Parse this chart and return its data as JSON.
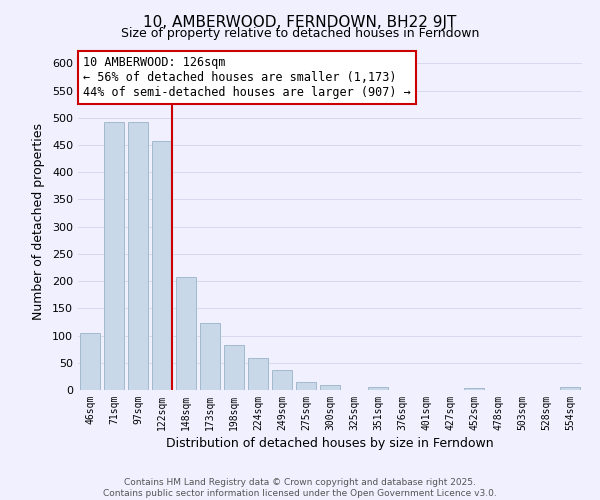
{
  "title": "10, AMBERWOOD, FERNDOWN, BH22 9JT",
  "subtitle": "Size of property relative to detached houses in Ferndown",
  "xlabel": "Distribution of detached houses by size in Ferndown",
  "ylabel": "Number of detached properties",
  "bar_labels": [
    "46sqm",
    "71sqm",
    "97sqm",
    "122sqm",
    "148sqm",
    "173sqm",
    "198sqm",
    "224sqm",
    "249sqm",
    "275sqm",
    "300sqm",
    "325sqm",
    "351sqm",
    "376sqm",
    "401sqm",
    "427sqm",
    "452sqm",
    "478sqm",
    "503sqm",
    "528sqm",
    "554sqm"
  ],
  "bar_values": [
    105,
    492,
    492,
    458,
    208,
    123,
    83,
    58,
    37,
    15,
    10,
    0,
    5,
    0,
    0,
    0,
    4,
    0,
    0,
    0,
    5
  ],
  "bar_color": "#c8d8e8",
  "bar_edge_color": "#9ab4c8",
  "vline_color": "#cc0000",
  "vline_x_index": 3,
  "annotation_title": "10 AMBERWOOD: 126sqm",
  "annotation_line1": "← 56% of detached houses are smaller (1,173)",
  "annotation_line2": "44% of semi-detached houses are larger (907) →",
  "annotation_box_color": "#ffffff",
  "annotation_border_color": "#cc0000",
  "ylim": [
    0,
    620
  ],
  "yticks": [
    0,
    50,
    100,
    150,
    200,
    250,
    300,
    350,
    400,
    450,
    500,
    550,
    600
  ],
  "footer_line1": "Contains HM Land Registry data © Crown copyright and database right 2025.",
  "footer_line2": "Contains public sector information licensed under the Open Government Licence v3.0.",
  "background_color": "#f0f0ff",
  "grid_color": "#d8d8ee",
  "title_fontsize": 11,
  "subtitle_fontsize": 9
}
